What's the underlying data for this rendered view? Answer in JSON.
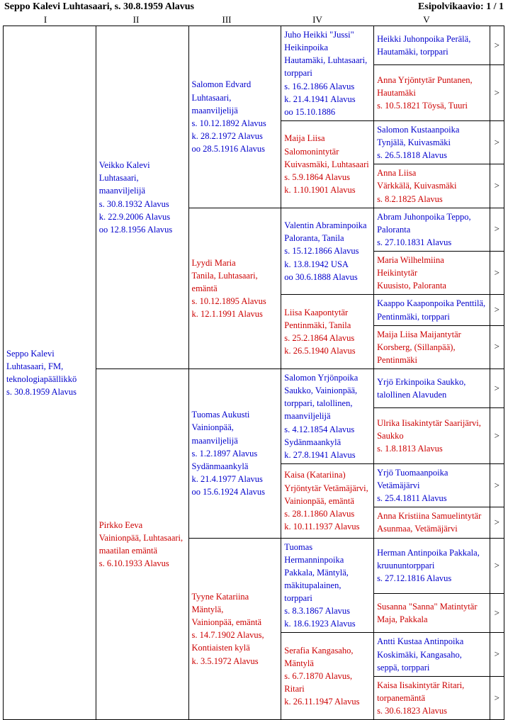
{
  "header": {
    "title": "Seppo Kalevi Luhtasaari,  s. 30.8.1959 Alavus",
    "right": "Esipolvikaavio: 1 / 1"
  },
  "roman": [
    "I",
    "II",
    "III",
    "IV",
    "V"
  ],
  "colors": {
    "male": "#0000cc",
    "female": "#cc0000",
    "border": "#000000",
    "background": "#ffffff"
  },
  "font": {
    "family": "Times New Roman",
    "size_pt": 10
  },
  "arrow": ">",
  "g1": "Seppo Kalevi Luhtasaari, FM, teknologiapäällikkö\ns. 30.8.1959 Alavus",
  "g2a": "Veikko Kalevi Luhtasaari, maanviljelijä\ns. 30.8.1932 Alavus\nk. 22.9.2006 Alavus\noo 12.8.1956 Alavus",
  "g2b": "Pirkko Eeva Vainionpää, Luhtasaari, maatilan emäntä\ns. 6.10.1933 Alavus",
  "g3a": "Salomon Edvard Luhtasaari, maanviljelijä\ns. 10.12.1892 Alavus\nk. 28.2.1972 Alavus\noo 28.5.1916 Alavus",
  "g3b": "Lyydi Maria\nTanila, Luhtasaari, emäntä\ns. 10.12.1895 Alavus\nk. 12.1.1991 Alavus",
  "g3c": "Tuomas Aukusti Vainionpää, maanviljelijä\ns. 1.2.1897 Alavus Sydänmaankylä\nk. 21.4.1977 Alavus\noo 15.6.1924 Alavus",
  "g3d": "Tyyne Katariina Mäntylä,\n Vainionpää, emäntä\ns. 14.7.1902 Alavus,  Kontiaisten kylä\nk. 3.5.1972 Alavus",
  "g4a": "Juho Heikki \"Jussi\" Heikinpoika Hautamäki, Luhtasaari, torppari\ns. 16.2.1866 Alavus\nk. 21.4.1941 Alavus\noo 15.10.1886",
  "g4b": "Maija Liisa Salomonintytär Kuivasmäki, Luhtasaari\ns. 5.9.1864 Alavus\nk. 1.10.1901 Alavus",
  "g4c": "Valentin Abraminpoika Paloranta, Tanila\ns. 15.12.1866 Alavus\nk. 13.8.1942 USA\noo 30.6.1888 Alavus",
  "g4d": "Liisa Kaapontytär Pentinmäki, Tanila\ns. 25.2.1864 Alavus\nk. 26.5.1940 Alavus",
  "g4e": "Salomon Yrjönpoika Saukko, Vainionpää,  torppari, talollinen, maanviljelijä\ns. 4.12.1854 Alavus Sydänmaankylä\nk. 27.8.1941 Alavus",
  "g4f": "Kaisa (Katariina) Yrjöntytär Vetämäjärvi, Vainionpää, emäntä\ns. 28.1.1860 Alavus\nk. 10.11.1937 Alavus",
  "g4g": "Tuomas Hermanninpoika Pakkala, Mäntylä, mäkitupalainen, torppari\ns. 8.3.1867 Alavus\nk. 18.6.1923 Alavus",
  "g4h": "Serafia Kangasaho, Mäntylä\ns. 6.7.1870 Alavus, Ritari\nk. 26.11.1947 Alavus",
  "g5": [
    "Heikki Juhonpoika Perälä, Hautamäki, torppari",
    "Anna Yrjöntytär Puntanen, Hautamäki\ns. 10.5.1821 Töysä, Tuuri",
    "Salomon Kustaanpoika Tynjälä, Kuivasmäki\ns. 26.5.1818 Alavus",
    "Anna Liisa\nVärkkälä, Kuivasmäki\ns. 8.2.1825 Alavus",
    "Abram Juhonpoika Teppo, Paloranta\ns. 27.10.1831 Alavus",
    "Maria Wilhelmiina Heikintytär\nKuusisto, Paloranta",
    "Kaappo Kaaponpoika Penttilä, Pentinmäki, torppari",
    "Maija Liisa Maijantytär Korsberg, (Sillanpää), Pentinmäki",
    "Yrjö Erkinpoika Saukko, talollinen Alavuden",
    "Ulrika Iisakintytär Saarijärvi, Saukko\ns. 1.8.1813 Alavus",
    "Yrjö Tuomaanpoika Vetämäjärvi\ns. 25.4.1811 Alavus",
    "Anna Kristiina Samuelintytär Asunmaa, Vetämäjärvi",
    "Herman Antinpoika Pakkala, kruununtorppari\ns. 27.12.1816 Alavus",
    "Susanna \"Sanna\" Matintytär\nMaja, Pakkala",
    "Antti Kustaa Antinpoika Koskimäki, Kangasaho, seppä, torppari",
    "Kaisa Iisakintytär Ritari, torpanemäntä\ns. 30.6.1823 Alavus"
  ]
}
